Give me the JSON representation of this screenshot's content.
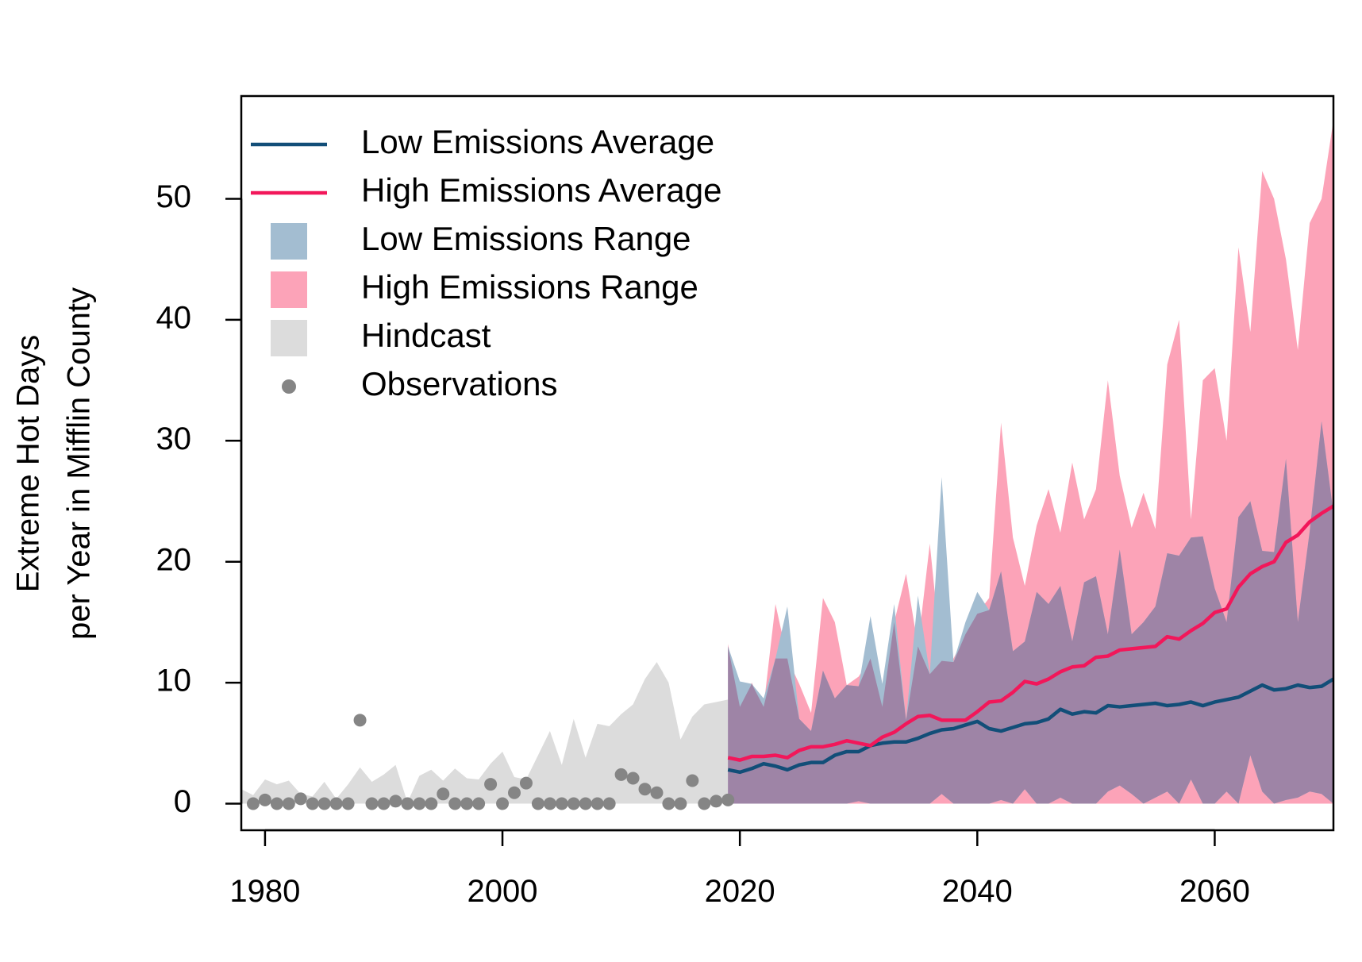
{
  "chart_data": {
    "type": "area",
    "title": "",
    "xlabel": "",
    "ylabel_lines": [
      "Extreme Hot Days",
      "per Year in Mifflin County"
    ],
    "xlim": [
      1978,
      2070
    ],
    "ylim": [
      -2.2,
      58.5
    ],
    "xticks": [
      1980,
      2000,
      2020,
      2040,
      2060
    ],
    "yticks": [
      0,
      10,
      20,
      30,
      40,
      50
    ],
    "grid": false,
    "legend": {
      "position": "top-left",
      "entries": [
        {
          "label": "Low Emissions Average",
          "kind": "line",
          "color": "#124e78"
        },
        {
          "label": "High Emissions Average",
          "kind": "line",
          "color": "#f2175a"
        },
        {
          "label": "Low Emissions Range",
          "kind": "box",
          "color": "#a3bdd1"
        },
        {
          "label": "High Emissions Range",
          "kind": "box",
          "color": "#fca3b8"
        },
        {
          "label": "Hindcast",
          "kind": "box",
          "color": "#dcdcdc"
        },
        {
          "label": "Observations",
          "kind": "point",
          "color": "#858585"
        }
      ]
    },
    "colors": {
      "low_avg": "#124e78",
      "high_avg": "#f2175a",
      "low_range": "#a3bdd1",
      "high_range": "#fca3b8",
      "overlap": "#9e84a6",
      "hindcast": "#dcdcdc",
      "observations": "#858585"
    },
    "observations": {
      "x": [
        1979,
        1980,
        1981,
        1982,
        1983,
        1984,
        1985,
        1986,
        1987,
        1988,
        1989,
        1990,
        1991,
        1992,
        1993,
        1994,
        1995,
        1996,
        1997,
        1998,
        1999,
        2000,
        2001,
        2002,
        2003,
        2004,
        2005,
        2006,
        2007,
        2008,
        2009,
        2010,
        2011,
        2012,
        2013,
        2014,
        2015,
        2016,
        2017,
        2018,
        2019
      ],
      "y": [
        0,
        0.3,
        0,
        0,
        0.4,
        0,
        0,
        0,
        0,
        6.9,
        0,
        0,
        0.2,
        0,
        0,
        0,
        0.8,
        0,
        0,
        0,
        1.6,
        0,
        0.9,
        1.7,
        0,
        0,
        0,
        0,
        0,
        0,
        0,
        2.4,
        2.1,
        1.2,
        0.9,
        0,
        0,
        1.9,
        0,
        0.2,
        0.3
      ]
    },
    "hindcast": {
      "x": [
        1978,
        1979,
        1980,
        1981,
        1982,
        1983,
        1984,
        1985,
        1986,
        1987,
        1988,
        1989,
        1990,
        1991,
        1992,
        1993,
        1994,
        1995,
        1996,
        1997,
        1998,
        1999,
        2000,
        2001,
        2002,
        2003,
        2004,
        2005,
        2006,
        2007,
        2008,
        2009,
        2010,
        2011,
        2012,
        2013,
        2014,
        2015,
        2016,
        2017,
        2018,
        2019
      ],
      "lower": [
        0,
        0,
        0,
        0,
        0,
        0,
        0,
        0,
        0,
        0,
        0,
        0,
        0,
        0,
        0,
        0,
        0,
        0,
        0,
        0,
        0,
        0,
        0,
        0,
        0,
        0,
        0,
        0,
        0,
        0,
        0,
        0,
        0,
        0,
        0,
        0,
        0,
        0,
        0,
        0,
        0,
        0
      ],
      "upper": [
        1.2,
        0.7,
        2.0,
        1.6,
        1.9,
        0.8,
        0.6,
        1.8,
        0.4,
        1.6,
        3.0,
        1.8,
        2.4,
        3.2,
        0.1,
        2.3,
        2.8,
        1.9,
        2.9,
        2.1,
        2.0,
        3.3,
        4.3,
        2.2,
        2.0,
        4.0,
        6.0,
        3.2,
        7.0,
        3.8,
        6.6,
        6.4,
        7.4,
        8.2,
        10.3,
        11.7,
        10.0,
        5.3,
        7.2,
        8.2,
        8.4,
        8.6
      ]
    },
    "projection_years": [
      2019,
      2020,
      2021,
      2022,
      2023,
      2024,
      2025,
      2026,
      2027,
      2028,
      2029,
      2030,
      2031,
      2032,
      2033,
      2034,
      2035,
      2036,
      2037,
      2038,
      2039,
      2040,
      2041,
      2042,
      2043,
      2044,
      2045,
      2046,
      2047,
      2048,
      2049,
      2050,
      2051,
      2052,
      2053,
      2054,
      2055,
      2056,
      2057,
      2058,
      2059,
      2060,
      2061,
      2062,
      2063,
      2064,
      2065,
      2066,
      2067,
      2068,
      2069,
      2070
    ],
    "series": [
      {
        "name": "Low Emissions Average",
        "values": [
          2.8,
          2.6,
          2.9,
          3.3,
          3.1,
          2.8,
          3.2,
          3.4,
          3.4,
          4.0,
          4.3,
          4.3,
          4.8,
          5.0,
          5.1,
          5.1,
          5.4,
          5.8,
          6.1,
          6.2,
          6.5,
          6.8,
          6.2,
          6.0,
          6.3,
          6.6,
          6.7,
          7.0,
          7.8,
          7.4,
          7.6,
          7.5,
          8.1,
          8.0,
          8.1,
          8.2,
          8.3,
          8.1,
          8.2,
          8.4,
          8.1,
          8.4,
          8.6,
          8.8,
          9.3,
          9.8,
          9.4,
          9.5,
          9.8,
          9.6,
          9.7,
          10.3
        ]
      },
      {
        "name": "High Emissions Average",
        "values": [
          3.8,
          3.6,
          3.9,
          3.9,
          4.0,
          3.8,
          4.4,
          4.7,
          4.7,
          4.9,
          5.2,
          5.0,
          4.8,
          5.5,
          5.9,
          6.6,
          7.2,
          7.3,
          6.9,
          6.9,
          6.9,
          7.6,
          8.4,
          8.5,
          9.2,
          10.1,
          9.9,
          10.3,
          10.9,
          11.3,
          11.4,
          12.1,
          12.2,
          12.7,
          12.8,
          12.9,
          13.0,
          13.8,
          13.6,
          14.3,
          14.9,
          15.8,
          16.1,
          17.9,
          19.0,
          19.6,
          20.0,
          21.6,
          22.2,
          23.3,
          24.0,
          24.6
        ]
      },
      {
        "name": "Low Emissions Range",
        "lower": [
          0,
          0,
          0,
          0,
          0,
          0,
          0,
          0,
          0,
          0,
          0,
          0.2,
          0,
          0,
          0,
          0,
          0,
          0,
          0.8,
          0,
          0,
          0,
          0,
          0.3,
          0,
          1.2,
          0,
          0,
          0.5,
          0,
          0,
          0,
          1.0,
          1.5,
          0.8,
          0,
          0.5,
          1.0,
          0,
          2.0,
          0,
          0,
          1.0,
          0,
          4.0,
          1.0,
          0,
          0.3,
          0.5,
          1.0,
          0.8,
          0
        ],
        "upper": [
          13.0,
          10.1,
          9.9,
          8.7,
          12.0,
          16.3,
          7.0,
          6.0,
          11.0,
          8.7,
          9.8,
          9.7,
          15.5,
          9.9,
          16.5,
          6.9,
          17.2,
          10.7,
          27.0,
          11.7,
          15.0,
          17.5,
          16.0,
          19.2,
          12.6,
          13.4,
          17.5,
          16.5,
          18.0,
          13.4,
          18.3,
          18.8,
          14.0,
          21.0,
          14.0,
          15.0,
          16.3,
          20.7,
          20.5,
          22.0,
          22.1,
          17.8,
          15.0,
          23.7,
          25.0,
          20.9,
          20.8,
          28.5,
          15.0,
          22.5,
          31.6,
          24.0
        ]
      },
      {
        "name": "High Emissions Range",
        "lower": [
          0,
          0,
          0,
          0,
          0,
          0,
          0,
          0,
          0,
          0,
          0,
          0,
          0,
          0,
          0,
          0,
          0,
          0,
          0,
          0,
          0,
          0,
          0,
          0,
          0,
          0,
          0,
          0,
          0,
          0,
          0,
          0,
          0,
          0,
          0,
          0,
          0,
          0,
          0,
          0,
          0,
          0,
          0,
          0,
          0,
          0,
          0,
          0,
          0,
          0,
          0,
          0
        ],
        "upper": [
          13.2,
          8.0,
          10.0,
          8.0,
          16.5,
          12.0,
          9.9,
          7.5,
          17.0,
          15.0,
          9.8,
          10.5,
          12.0,
          8.0,
          15.0,
          19.0,
          13.0,
          21.5,
          11.8,
          12.0,
          14.0,
          15.7,
          17.0,
          31.5,
          22.0,
          18.0,
          23.0,
          26.0,
          22.4,
          28.2,
          23.5,
          26.0,
          35.0,
          27.1,
          22.8,
          25.7,
          22.7,
          36.3,
          40.0,
          23.5,
          35.0,
          36.0,
          30.0,
          46.0,
          39.0,
          52.3,
          50.0,
          45.0,
          37.5,
          48.0,
          50.0,
          56.5
        ]
      }
    ]
  }
}
